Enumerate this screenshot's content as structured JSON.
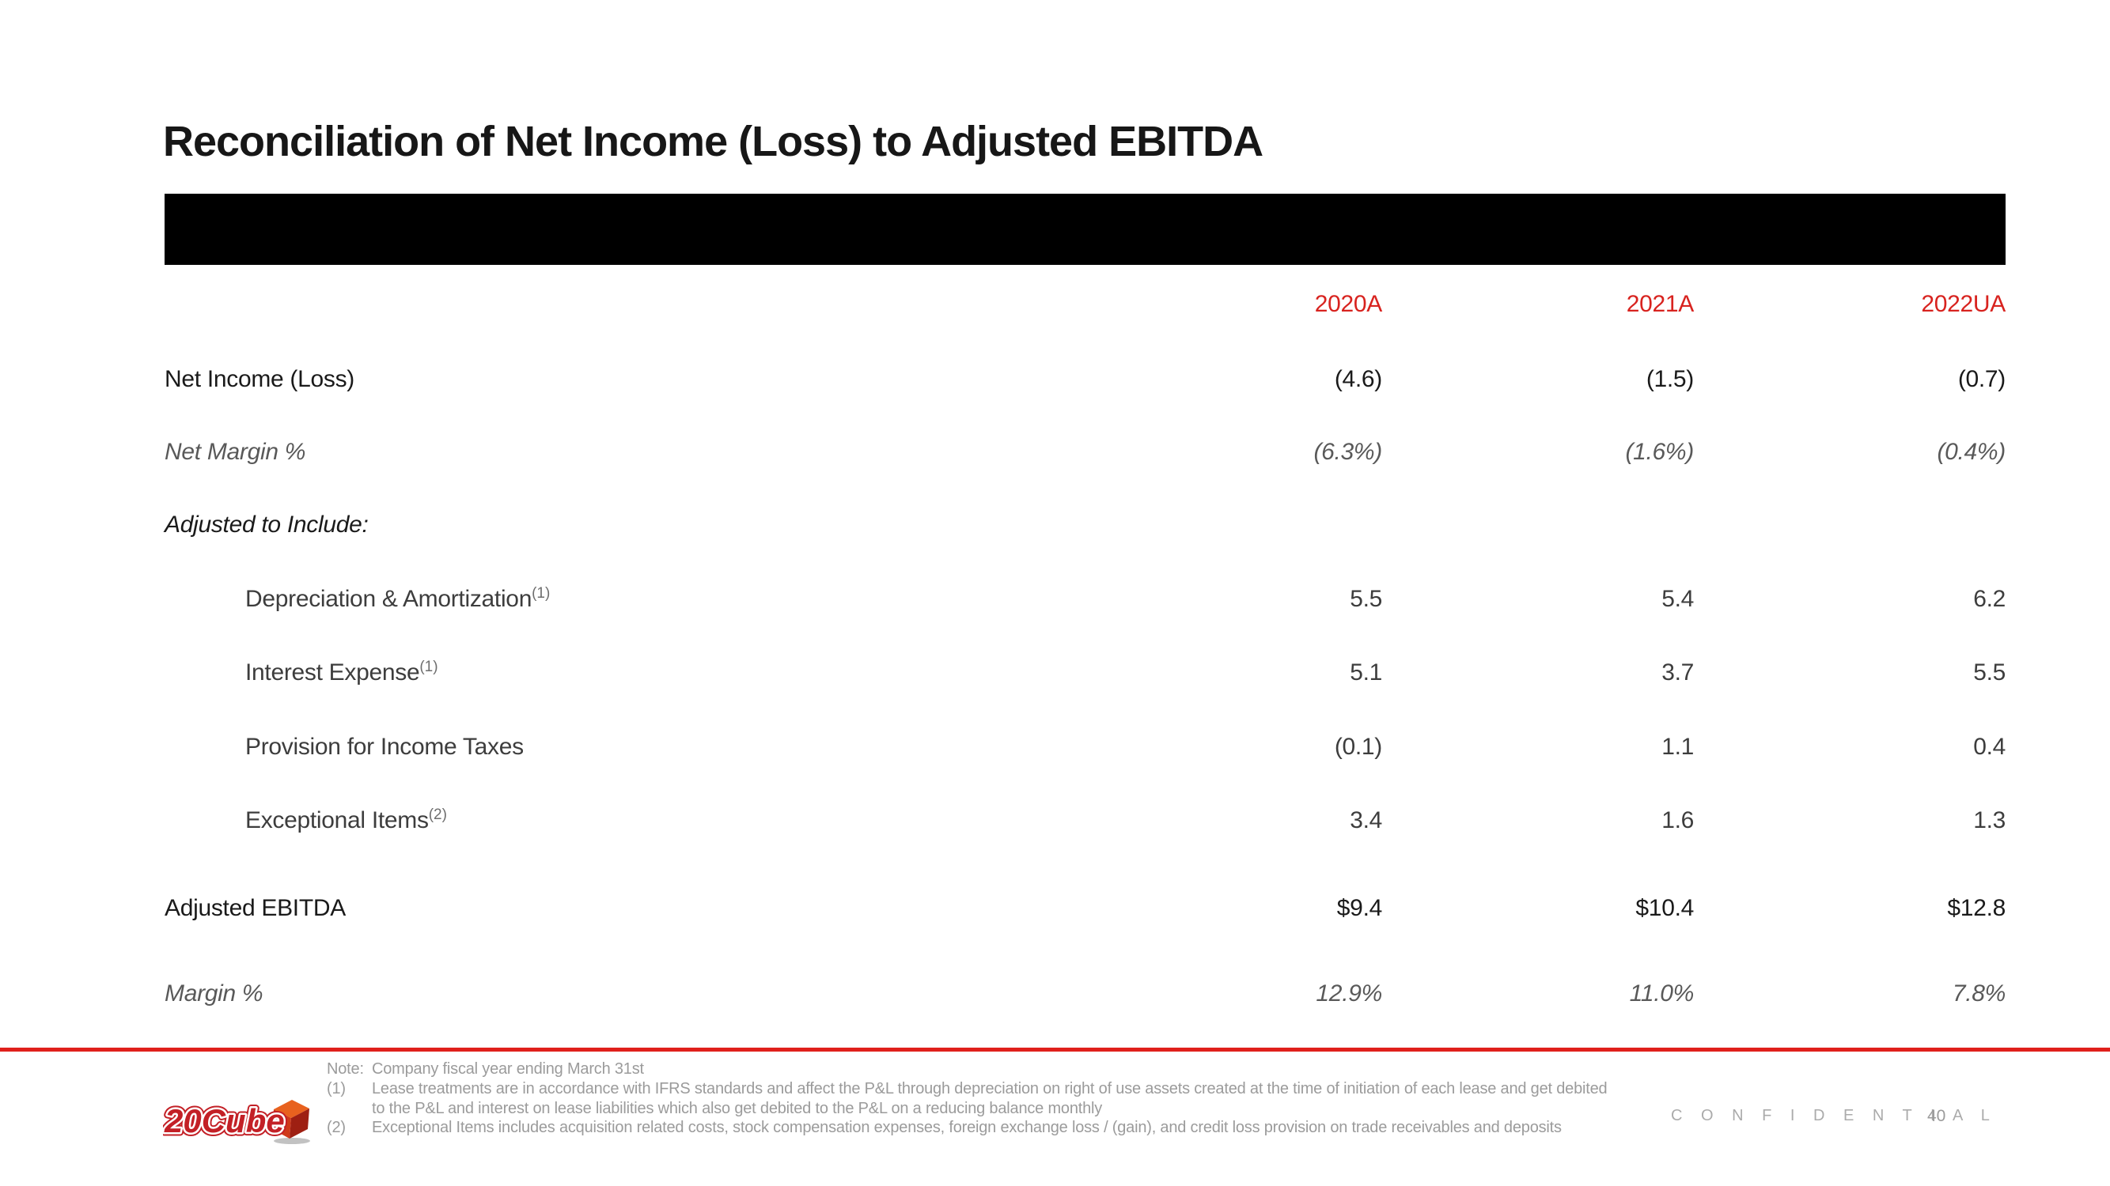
{
  "slide": {
    "title": "Reconciliation of Net Income (Loss) to Adjusted EBITDA",
    "confidential": "C O N F I D E N T I A L",
    "page_number": "40",
    "logo_text": "20Cube"
  },
  "colors": {
    "header_red": "#d8231f",
    "divider_red": "#e0201c",
    "logo_red": "#c32026",
    "cube_orange": "#e8611e",
    "black_bar": "#000000",
    "footer_gray": "#9b9b9b"
  },
  "table": {
    "columns": [
      "2020A",
      "2021A",
      "2022UA"
    ],
    "rows": [
      {
        "label": "Net Income (Loss)",
        "style": "main",
        "values": [
          "(4.6)",
          "(1.5)",
          "(0.7)"
        ]
      },
      {
        "label": "Net Margin %",
        "style": "italic-gray",
        "values": [
          "(6.3%)",
          "(1.6%)",
          "(0.4%)"
        ]
      },
      {
        "label": "Adjusted to Include:",
        "style": "italic-black",
        "values": [
          "",
          "",
          ""
        ]
      },
      {
        "label": "Depreciation & Amortization",
        "sup": "(1)",
        "style": "indent",
        "values": [
          "5.5",
          "5.4",
          "6.2"
        ]
      },
      {
        "label": "Interest Expense",
        "sup": "(1)",
        "style": "indent",
        "values": [
          "5.1",
          "3.7",
          "5.5"
        ]
      },
      {
        "label": "Provision for Income Taxes",
        "style": "indent",
        "values": [
          "(0.1)",
          "1.1",
          "0.4"
        ]
      },
      {
        "label": "Exceptional Items",
        "sup": "(2)",
        "style": "indent",
        "values": [
          "3.4",
          "1.6",
          "1.3"
        ]
      },
      {
        "label": "Adjusted EBITDA",
        "style": "main",
        "values": [
          "$9.4",
          "$10.4",
          "$12.8"
        ]
      },
      {
        "label": "Margin %",
        "style": "italic-gray",
        "values": [
          "12.9%",
          "11.0%",
          "7.8%"
        ]
      }
    ]
  },
  "footer": {
    "note_label": "Note:",
    "note_text": "Company fiscal year ending March 31st",
    "footnotes": [
      {
        "marker": "(1)",
        "lines": [
          "Lease treatments are in accordance with IFRS standards and affect the P&L through depreciation on right of use assets created at the time of initiation of each lease and get debited",
          "to the P&L and interest on lease liabilities which also get debited to the P&L on a reducing balance monthly"
        ]
      },
      {
        "marker": "(2)",
        "lines": [
          "Exceptional Items includes acquisition related costs, stock compensation expenses, foreign exchange loss / (gain), and credit loss provision on trade receivables and deposits"
        ]
      }
    ]
  }
}
